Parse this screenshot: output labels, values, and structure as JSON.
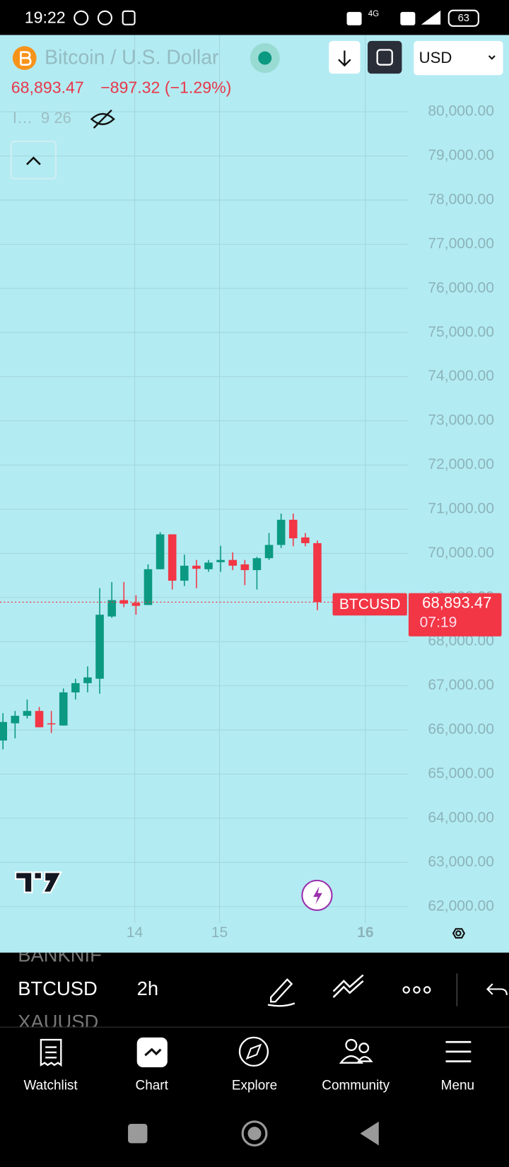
{
  "status_bar": {
    "time": "19:22",
    "network": "4G",
    "battery": "63"
  },
  "header": {
    "title": "Bitcoin / U.S. Dollar",
    "currency": "USD",
    "price": "68,893.47",
    "change": "−897.32 (−1.29%)",
    "indicator_name": "I…",
    "indicator_values": "9 26"
  },
  "chart_data": {
    "type": "candlestick",
    "symbol_label": "BTCUSD",
    "last_price_label": "68,893.47",
    "countdown": "07:19",
    "x_labels": [
      "14",
      "15",
      "16"
    ],
    "open": [
      65760,
      66150,
      66320,
      66430,
      66150,
      66100,
      66850,
      67060,
      67160,
      68570,
      68940,
      68880,
      68830,
      69640,
      70430,
      69380,
      69720,
      69640,
      69800,
      69850,
      69750,
      69620,
      69890,
      70190,
      70760,
      70360,
      70230
    ],
    "high": [
      66380,
      66430,
      66690,
      66520,
      66430,
      66940,
      67160,
      67440,
      69210,
      69350,
      69350,
      69050,
      69750,
      70480,
      70430,
      69970,
      69850,
      69850,
      70170,
      70020,
      69850,
      69920,
      70460,
      70900,
      70900,
      70460,
      70290
    ],
    "low": [
      65560,
      65810,
      66260,
      66060,
      65930,
      66100,
      66690,
      66850,
      66820,
      68540,
      68780,
      68610,
      68830,
      69640,
      69180,
      69260,
      69210,
      69580,
      69580,
      69620,
      69280,
      69180,
      69850,
      70120,
      70160,
      70160,
      68710
    ],
    "close": [
      66180,
      66320,
      66430,
      66060,
      66130,
      66850,
      67060,
      67190,
      68610,
      68940,
      68860,
      68810,
      69640,
      70430,
      69380,
      69720,
      69650,
      69790,
      69850,
      69720,
      69620,
      69890,
      70190,
      70760,
      70340,
      70230,
      68893.47
    ],
    "up_color": "#0b9981",
    "down_color": "#f23645",
    "ylim": [
      61630,
      81740
    ],
    "yticks": [
      {
        "value": 62000,
        "label": "62,000.00"
      },
      {
        "value": 63000,
        "label": "63,000.00"
      },
      {
        "value": 64000,
        "label": "64,000.00"
      },
      {
        "value": 65000,
        "label": "65,000.00"
      },
      {
        "value": 66000,
        "label": "66,000.00"
      },
      {
        "value": 67000,
        "label": "67,000.00"
      },
      {
        "value": 68000,
        "label": "68,000.00"
      },
      {
        "value": 69000,
        "label": "69,000.00"
      },
      {
        "value": 70000,
        "label": "70,000.00"
      },
      {
        "value": 71000,
        "label": "71,000.00"
      },
      {
        "value": 72000,
        "label": "72,000.00"
      },
      {
        "value": 73000,
        "label": "73,000.00"
      },
      {
        "value": 74000,
        "label": "74,000.00"
      },
      {
        "value": 75000,
        "label": "75,000.00"
      },
      {
        "value": 76000,
        "label": "76,000.00"
      },
      {
        "value": 77000,
        "label": "77,000.00"
      },
      {
        "value": 78000,
        "label": "78,000.00"
      },
      {
        "value": 79000,
        "label": "79,000.00"
      },
      {
        "value": 80000,
        "label": "80,000.00"
      }
    ],
    "grid": true
  },
  "toolbar": {
    "symbols": [
      "BANKNIF",
      "BTCUSD",
      "XAUUSD"
    ],
    "interval": "2h"
  },
  "nav": [
    "Watchlist",
    "Chart",
    "Explore",
    "Community",
    "Menu"
  ]
}
